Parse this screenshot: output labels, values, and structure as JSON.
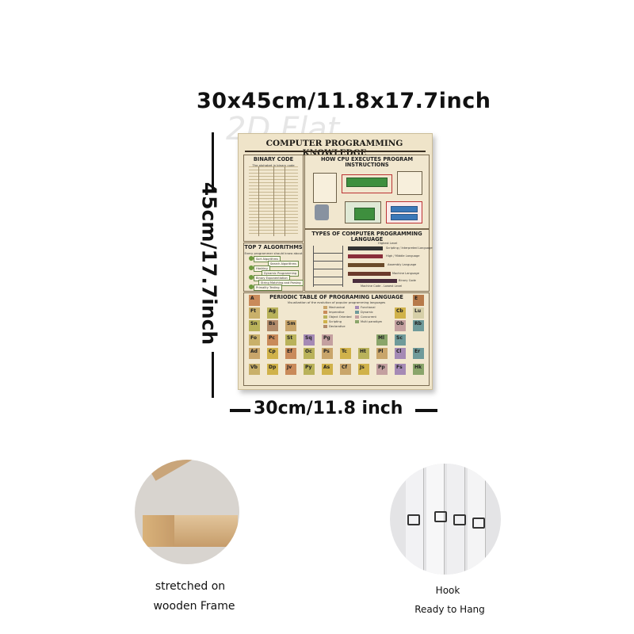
{
  "dimensions": {
    "top_label": "30x45cm/11.8x17.7inch",
    "side_label": "45cm/17.7inch",
    "bottom_label": "30cm/11.8 inch"
  },
  "watermark": "2D Flat",
  "poster": {
    "title": "COMPUTER PROGRAMMING KNOWLEDGE",
    "binary_code": {
      "title": "BINARY CODE",
      "subtitle": "The alphabet in binary code"
    },
    "cpu": {
      "title": "HOW CPU EXECUTES PROGRAM INSTRUCTIONS",
      "labels": [
        "Load disk",
        "Program Executable Copy",
        "Instruction 1",
        "Instruction 2",
        "Instruction 3",
        "Instruction 4",
        "Instruction n",
        "Instructions are loaded in RAM",
        "Processor - CPU",
        "CACHE",
        "CACHE MEMORY L1",
        "CACHE MEMORY L2"
      ]
    },
    "algorithms": {
      "title": "TOP 7 ALGORITHMS",
      "subtitle": "Every programmer should know about",
      "items": [
        "Sort Algorithms",
        "Search Algorithms",
        "Hashing",
        "Dynamic Programming",
        "Binary Exponentiation",
        "String Matching and Parsing",
        "Primality Testing"
      ]
    },
    "languages": {
      "title": "TYPES OF COMPUTER PROGRAMMING LANGUAGE",
      "labels": [
        "Highest Level",
        "Scripting / Interpreted Language",
        "High / Middle Language",
        "Assembly Language",
        "Machine Language",
        "Binary Code",
        "Machine Code - Lowest Level"
      ]
    },
    "periodic": {
      "title": "PERIODIC TABLE OF PROGRAMING LANGUAGE",
      "subtitle": "Visualization of the evolution of popular programming languages",
      "legend": [
        "Mechanical",
        "Imperative",
        "Object Oriented",
        "Scripting",
        "Declarative",
        "Functional",
        "Dynamic",
        "Concurrent",
        "Multi paradigm"
      ],
      "cells": [
        "A",
        "E",
        "Ft",
        "Ag",
        "Cb",
        "Lu",
        "Sn",
        "Bs",
        "Sm",
        "Ob",
        "Rb",
        "Fo",
        "Pc",
        "St",
        "Sq",
        "Pg",
        "Ml",
        "Sc",
        "Ad",
        "Cp",
        "Ef",
        "Oc",
        "Ps",
        "Tc",
        "Ht",
        "Pl",
        "Cl",
        "Er",
        "Vb",
        "Dp",
        "Jv",
        "Py",
        "As",
        "Cf",
        "Js",
        "Pp",
        "Fs",
        "Hk"
      ]
    }
  },
  "photos": {
    "frame_caption_line1": "stretched on",
    "frame_caption_line2": "wooden Frame",
    "hook_caption_line1": "Hook",
    "hook_caption_line2": "Ready to Hang"
  }
}
